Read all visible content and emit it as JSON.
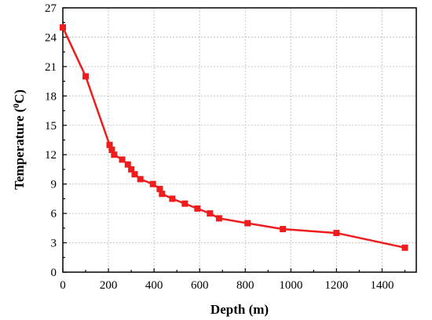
{
  "chart_data": {
    "type": "line",
    "xlabel": "Depth (m)",
    "ylabel": {
      "main": "Temperature  (",
      "sup": "0",
      "unit": "C)"
    },
    "xlim": [
      0,
      1550
    ],
    "ylim": [
      0,
      27
    ],
    "xticks": [
      0,
      200,
      400,
      600,
      800,
      1000,
      1200,
      1400
    ],
    "yticks": [
      0,
      3,
      6,
      9,
      12,
      15,
      18,
      21,
      24,
      27
    ],
    "grid": true,
    "line_color": "#ee1c1c",
    "series": [
      {
        "x": [
          0,
          100,
          205,
          215,
          225,
          260,
          285,
          300,
          315,
          340,
          395,
          425,
          435,
          480,
          535,
          590,
          645,
          685,
          810,
          965,
          1200,
          1500
        ],
        "y": [
          25,
          20,
          13,
          12.5,
          12,
          11.5,
          11,
          10.5,
          10,
          9.5,
          9,
          8.5,
          8,
          7.5,
          7,
          6.5,
          6,
          5.5,
          5,
          4.4,
          4,
          2.5
        ]
      }
    ]
  }
}
